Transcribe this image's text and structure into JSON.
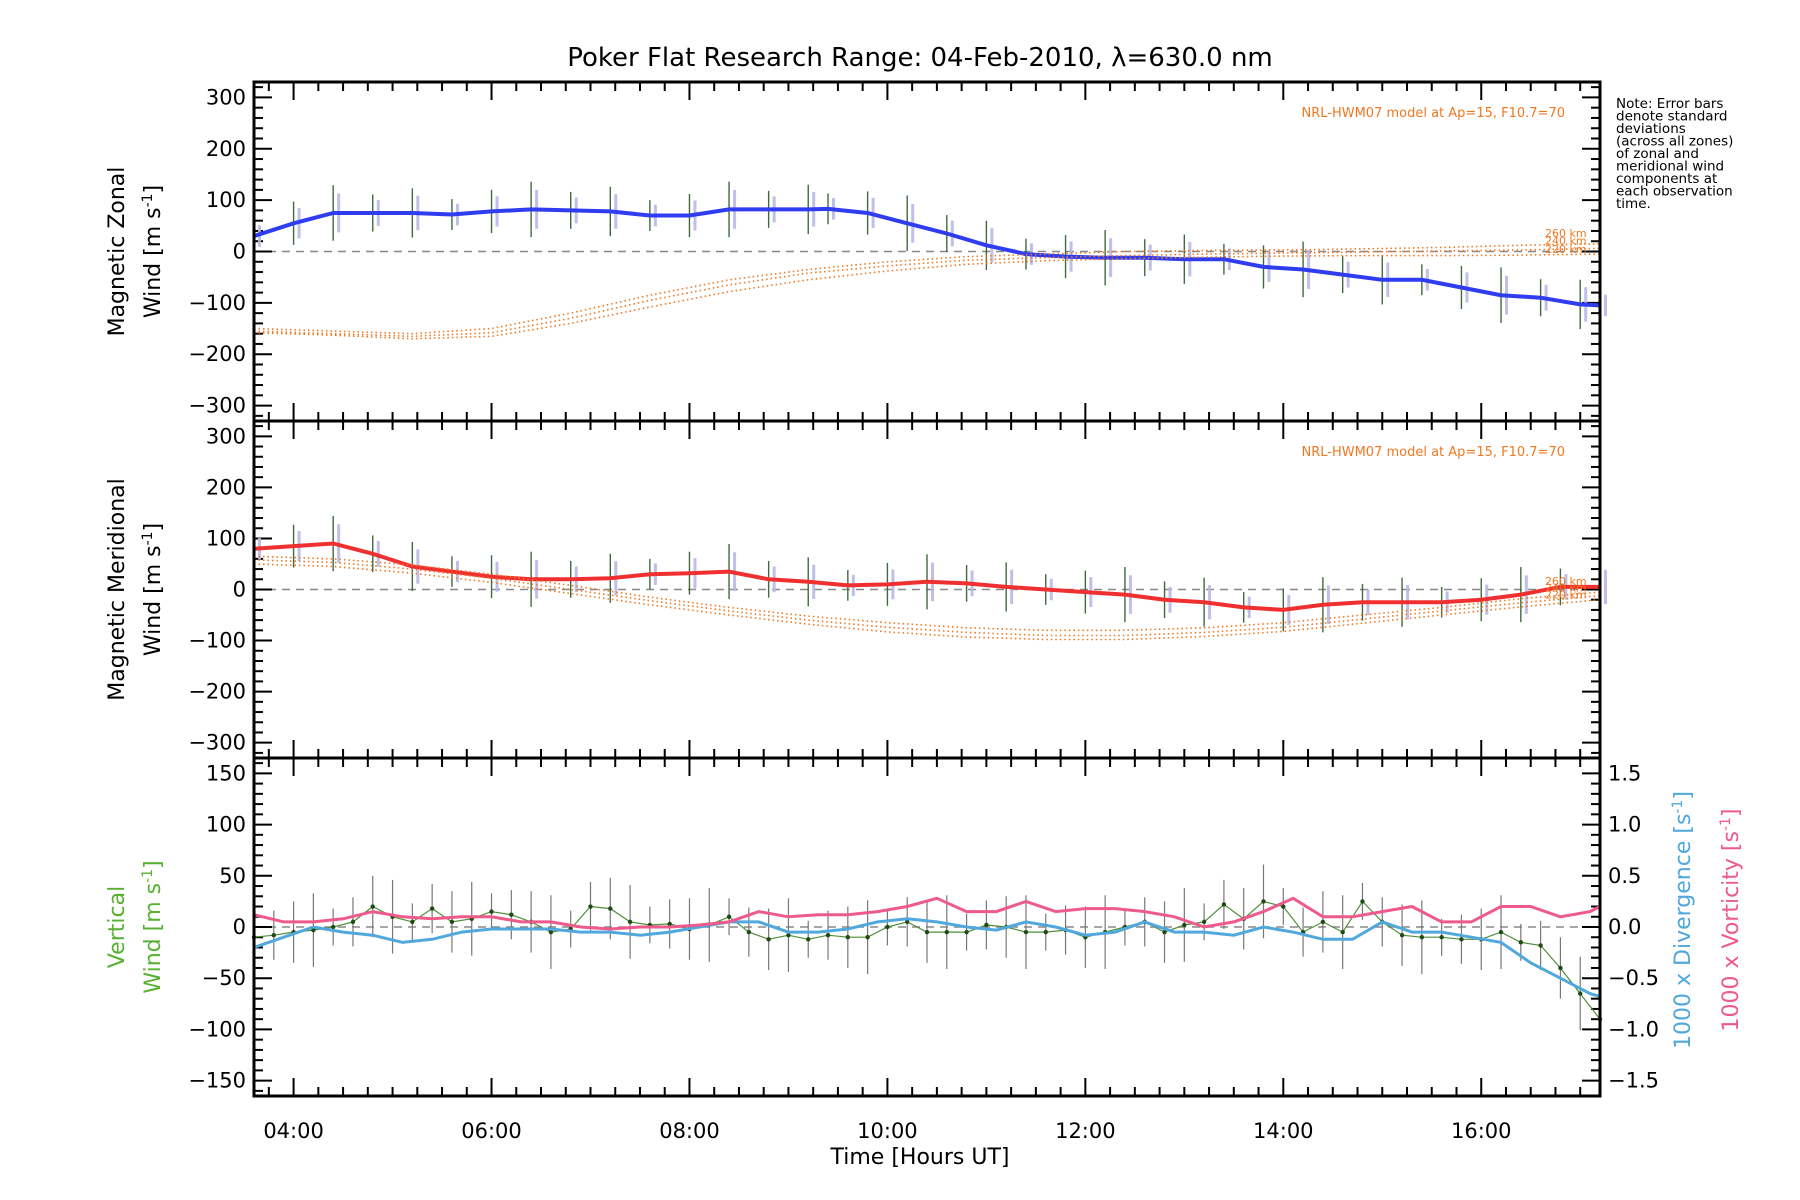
{
  "chart_data": {
    "type": "line",
    "title": "Poker Flat Research Range: 04-Feb-2010, λ=630.0 nm",
    "xlabel": "Time [Hours UT]",
    "xlim": [
      3.6,
      17.2
    ],
    "x_ticks": [
      4,
      6,
      8,
      10,
      12,
      14,
      16
    ],
    "x_tick_labels": [
      "04:00",
      "06:00",
      "08:00",
      "10:00",
      "12:00",
      "14:00",
      "16:00"
    ],
    "note_lines": [
      "Note: Error bars",
      "denote standard",
      "deviations",
      "(across all zones)",
      "of zonal and",
      "meridional wind",
      "components at",
      "each observation",
      "time."
    ],
    "panels": [
      {
        "id": "zonal",
        "ylabel_line1": "Magnetic Zonal",
        "ylabel_line2": "Wind [m s",
        "ylabel_sup": "-1",
        "ylabel_close": "]",
        "ylim": [
          -330,
          330
        ],
        "y_ticks": [
          -300,
          -200,
          -100,
          0,
          100,
          200,
          300
        ],
        "y_tick_labels": [
          "−300",
          "−200",
          "−100",
          "0",
          "100",
          "200",
          "300"
        ],
        "model_label": "NRL-HWM07 model at Ap=15, F10.7=70",
        "model_alt_labels": [
          "260 km",
          "240 km",
          "220 km"
        ],
        "series": [
          {
            "name": "Mean magnetic zonal wind",
            "color": "#2f3cf0",
            "x": [
              3.6,
              4.0,
              4.4,
              4.8,
              5.2,
              5.6,
              6.0,
              6.4,
              6.8,
              7.2,
              7.6,
              8.0,
              8.4,
              8.8,
              9.2,
              9.4,
              9.8,
              10.2,
              10.6,
              11.0,
              11.4,
              11.8,
              12.2,
              12.6,
              13.0,
              13.4,
              13.8,
              14.2,
              14.6,
              15.0,
              15.4,
              15.8,
              16.2,
              16.6,
              17.0,
              17.2
            ],
            "y": [
              30,
              55,
              75,
              75,
              75,
              72,
              78,
              82,
              80,
              78,
              70,
              70,
              82,
              82,
              82,
              83,
              75,
              55,
              35,
              12,
              -5,
              -10,
              -12,
              -12,
              -15,
              -15,
              -30,
              -35,
              -45,
              -55,
              -55,
              -70,
              -85,
              -90,
              -103,
              -105
            ]
          },
          {
            "name": "HWM07 260 km",
            "color": "#f07820",
            "dotted": true,
            "x": [
              3.6,
              4.4,
              5.2,
              6.0,
              6.8,
              7.6,
              8.4,
              9.2,
              10.0,
              10.8,
              11.6,
              12.4,
              13.2,
              14.0,
              14.8,
              15.6,
              16.4,
              17.2
            ],
            "y": [
              -150,
              -155,
              -160,
              -150,
              -120,
              -85,
              -55,
              -35,
              -20,
              -10,
              -5,
              0,
              2,
              3,
              5,
              8,
              12,
              15
            ]
          },
          {
            "name": "HWM07 240 km",
            "color": "#f07820",
            "dotted": true,
            "x": [
              3.6,
              4.4,
              5.2,
              6.0,
              6.8,
              7.6,
              8.4,
              9.2,
              10.0,
              10.8,
              11.6,
              12.4,
              13.2,
              14.0,
              14.8,
              15.6,
              16.4,
              17.2
            ],
            "y": [
              -155,
              -160,
              -165,
              -158,
              -130,
              -95,
              -65,
              -42,
              -28,
              -17,
              -12,
              -8,
              -5,
              -3,
              -1,
              1,
              3,
              6
            ]
          },
          {
            "name": "HWM07 220 km",
            "color": "#f07820",
            "dotted": true,
            "x": [
              3.6,
              4.4,
              5.2,
              6.0,
              6.8,
              7.6,
              8.4,
              9.2,
              10.0,
              10.8,
              11.6,
              12.4,
              13.2,
              14.0,
              14.8,
              15.6,
              16.4,
              17.2
            ],
            "y": [
              -158,
              -163,
              -170,
              -165,
              -140,
              -108,
              -78,
              -55,
              -38,
              -25,
              -18,
              -14,
              -11,
              -9,
              -8,
              -8,
              -7,
              -5
            ]
          }
        ]
      },
      {
        "id": "meridional",
        "ylabel_line1": "Magnetic Meridional",
        "ylabel_line2": "Wind [m s",
        "ylabel_sup": "-1",
        "ylabel_close": "]",
        "ylim": [
          -330,
          330
        ],
        "y_ticks": [
          -300,
          -200,
          -100,
          0,
          100,
          200,
          300
        ],
        "y_tick_labels": [
          "−300",
          "−200",
          "−100",
          "0",
          "100",
          "200",
          "300"
        ],
        "model_label": "NRL-HWM07 model at Ap=15, F10.7=70",
        "model_alt_labels": [
          "260 km",
          "240 km",
          "220 km"
        ],
        "series": [
          {
            "name": "Mean magnetic meridional wind",
            "color": "#f03030",
            "x": [
              3.6,
              4.0,
              4.4,
              4.8,
              5.2,
              5.6,
              6.0,
              6.4,
              6.8,
              7.2,
              7.6,
              8.0,
              8.4,
              8.8,
              9.2,
              9.6,
              10.0,
              10.4,
              10.8,
              11.2,
              11.6,
              12.0,
              12.4,
              12.8,
              13.2,
              13.6,
              14.0,
              14.4,
              14.8,
              15.2,
              15.6,
              16.0,
              16.4,
              16.8,
              17.2
            ],
            "y": [
              80,
              85,
              90,
              70,
              45,
              35,
              25,
              20,
              20,
              22,
              30,
              32,
              35,
              20,
              15,
              8,
              10,
              15,
              12,
              5,
              0,
              -5,
              -10,
              -20,
              -25,
              -35,
              -40,
              -30,
              -25,
              -25,
              -25,
              -20,
              -10,
              5,
              5
            ]
          },
          {
            "name": "HWM07 260 km",
            "color": "#f07820",
            "dotted": true,
            "x": [
              3.6,
              4.4,
              5.2,
              6.0,
              6.8,
              7.6,
              8.4,
              9.2,
              10.0,
              10.8,
              11.6,
              12.4,
              13.2,
              14.0,
              14.8,
              15.6,
              16.4,
              17.2
            ],
            "y": [
              65,
              60,
              48,
              30,
              8,
              -15,
              -35,
              -52,
              -65,
              -75,
              -80,
              -80,
              -75,
              -65,
              -50,
              -35,
              -18,
              -5
            ]
          },
          {
            "name": "HWM07 240 km",
            "color": "#f07820",
            "dotted": true,
            "x": [
              3.6,
              4.4,
              5.2,
              6.0,
              6.8,
              7.6,
              8.4,
              9.2,
              10.0,
              10.8,
              11.6,
              12.4,
              13.2,
              14.0,
              14.8,
              15.6,
              16.4,
              17.2
            ],
            "y": [
              58,
              53,
              40,
              22,
              0,
              -22,
              -42,
              -60,
              -74,
              -84,
              -90,
              -90,
              -84,
              -74,
              -58,
              -42,
              -26,
              -12
            ]
          },
          {
            "name": "HWM07 220 km",
            "color": "#f07820",
            "dotted": true,
            "x": [
              3.6,
              4.4,
              5.2,
              6.0,
              6.8,
              7.6,
              8.4,
              9.2,
              10.0,
              10.8,
              11.6,
              12.4,
              13.2,
              14.0,
              14.8,
              15.6,
              16.4,
              17.2
            ],
            "y": [
              50,
              45,
              32,
              14,
              -8,
              -30,
              -50,
              -68,
              -83,
              -93,
              -98,
              -98,
              -92,
              -82,
              -66,
              -50,
              -34,
              -20
            ]
          }
        ]
      },
      {
        "id": "vertical",
        "ylabel_line1": "Vertical",
        "ylabel_line2": "Wind [m s",
        "ylabel_sup": "-1",
        "ylabel_close": "]",
        "ylabel_color": "#58b030",
        "ylim": [
          -165,
          165
        ],
        "y_ticks": [
          -150,
          -100,
          -50,
          0,
          50,
          100,
          150
        ],
        "y_tick_labels": [
          "−150",
          "−100",
          "−50",
          "0",
          "50",
          "100",
          "150"
        ],
        "y2lim": [
          -1.65,
          1.65
        ],
        "y2_ticks": [
          -1.5,
          -1.0,
          -0.5,
          0.0,
          0.5,
          1.0,
          1.5
        ],
        "y2_tick_labels": [
          "−1.5",
          "−1.0",
          "−0.5",
          "0.0",
          "0.5",
          "1.0",
          "1.5"
        ],
        "y2_label_divergence": "1000 x Divergence [s",
        "y2_label_vorticity": "1000 x Vorticity [s",
        "y2_sup": "-1",
        "y2_close": "]",
        "series": [
          {
            "name": "Vertical wind",
            "color": "#3a7a2a",
            "axis": "left",
            "x": [
              3.6,
              3.8,
              4.0,
              4.2,
              4.4,
              4.6,
              4.8,
              5.0,
              5.2,
              5.4,
              5.6,
              5.8,
              6.0,
              6.2,
              6.4,
              6.6,
              6.8,
              7.0,
              7.2,
              7.4,
              7.6,
              7.8,
              8.0,
              8.2,
              8.4,
              8.6,
              8.8,
              9.0,
              9.2,
              9.4,
              9.6,
              9.8,
              10.0,
              10.2,
              10.4,
              10.6,
              10.8,
              11.0,
              11.2,
              11.4,
              11.6,
              11.8,
              12.0,
              12.2,
              12.4,
              12.6,
              12.8,
              13.0,
              13.2,
              13.4,
              13.6,
              13.8,
              14.0,
              14.2,
              14.4,
              14.6,
              14.8,
              15.0,
              15.2,
              15.4,
              15.6,
              15.8,
              16.0,
              16.2,
              16.4,
              16.6,
              16.8,
              17.0,
              17.2
            ],
            "y": [
              -10,
              -8,
              -5,
              -3,
              0,
              5,
              20,
              10,
              5,
              18,
              5,
              8,
              15,
              12,
              5,
              -5,
              -2,
              20,
              18,
              5,
              2,
              3,
              -2,
              2,
              10,
              -5,
              -12,
              -8,
              -12,
              -8,
              -10,
              -10,
              0,
              5,
              -5,
              -5,
              -5,
              2,
              0,
              -5,
              -5,
              -3,
              -10,
              -5,
              0,
              5,
              -5,
              2,
              5,
              22,
              8,
              25,
              20,
              -5,
              5,
              -5,
              25,
              5,
              -8,
              -10,
              -10,
              -12,
              -12,
              -5,
              -15,
              -18,
              -40,
              -65,
              -90
            ]
          },
          {
            "name": "1000 x Divergence",
            "color": "#50a8dc",
            "axis": "right",
            "x": [
              3.6,
              3.9,
              4.2,
              4.5,
              4.8,
              5.1,
              5.4,
              5.7,
              6.0,
              6.3,
              6.6,
              6.9,
              7.2,
              7.5,
              7.8,
              8.1,
              8.4,
              8.7,
              9.0,
              9.3,
              9.6,
              9.9,
              10.2,
              10.5,
              10.8,
              11.1,
              11.4,
              11.7,
              12.0,
              12.3,
              12.6,
              12.9,
              13.2,
              13.5,
              13.8,
              14.1,
              14.4,
              14.7,
              15.0,
              15.3,
              15.6,
              15.9,
              16.2,
              16.5,
              16.8,
              17.1,
              17.2
            ],
            "y": [
              -0.2,
              -0.1,
              0.0,
              -0.05,
              -0.08,
              -0.15,
              -0.12,
              -0.05,
              -0.02,
              -0.02,
              -0.02,
              -0.05,
              -0.05,
              -0.08,
              -0.05,
              0.0,
              0.05,
              0.05,
              -0.05,
              -0.05,
              -0.02,
              0.05,
              0.08,
              0.05,
              0.0,
              -0.03,
              0.05,
              0.0,
              -0.08,
              -0.05,
              0.05,
              -0.05,
              -0.05,
              -0.08,
              0.0,
              -0.05,
              -0.12,
              -0.12,
              0.05,
              -0.05,
              -0.05,
              -0.1,
              -0.15,
              -0.35,
              -0.5,
              -0.65,
              -0.68
            ]
          },
          {
            "name": "1000 x Vorticity",
            "color": "#ee5a8c",
            "axis": "right",
            "x": [
              3.6,
              3.9,
              4.2,
              4.5,
              4.8,
              5.1,
              5.4,
              5.7,
              6.0,
              6.3,
              6.6,
              6.9,
              7.2,
              7.5,
              7.8,
              8.1,
              8.4,
              8.7,
              9.0,
              9.3,
              9.6,
              9.9,
              10.2,
              10.5,
              10.8,
              11.1,
              11.4,
              11.7,
              12.0,
              12.3,
              12.6,
              12.9,
              13.2,
              13.5,
              13.8,
              14.1,
              14.4,
              14.7,
              15.0,
              15.3,
              15.6,
              15.9,
              16.2,
              16.5,
              16.8,
              17.1,
              17.2
            ],
            "y": [
              0.12,
              0.05,
              0.05,
              0.08,
              0.15,
              0.1,
              0.08,
              0.1,
              0.1,
              0.05,
              0.05,
              0.0,
              -0.02,
              0.0,
              0.0,
              0.02,
              0.05,
              0.15,
              0.1,
              0.12,
              0.12,
              0.15,
              0.2,
              0.28,
              0.15,
              0.15,
              0.25,
              0.15,
              0.18,
              0.18,
              0.15,
              0.1,
              0.0,
              0.05,
              0.15,
              0.28,
              0.1,
              0.1,
              0.15,
              0.2,
              0.05,
              0.05,
              0.2,
              0.2,
              0.1,
              0.15,
              0.2
            ]
          }
        ]
      }
    ]
  }
}
